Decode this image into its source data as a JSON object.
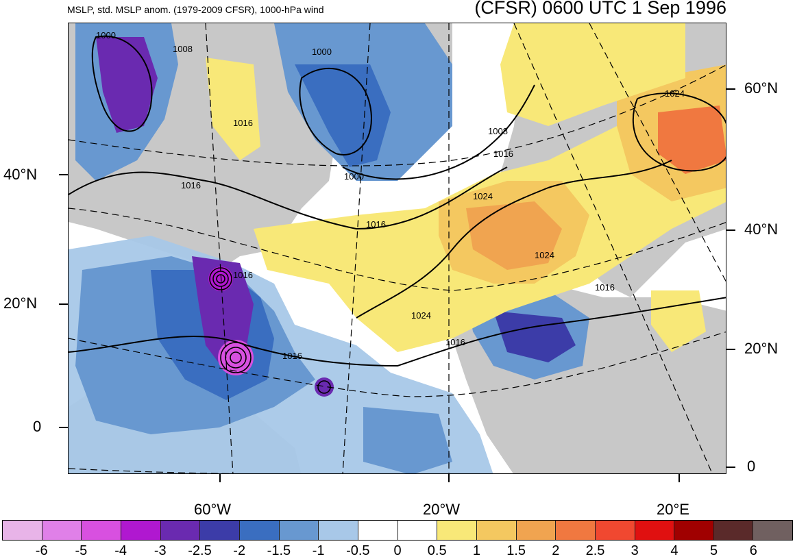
{
  "header": {
    "left_title": "MSLP, std. MSLP anom. (1979-2009 CFSR), 1000-hPa wind",
    "right_title": "(CFSR) 0600 UTC 1 Sep 1996"
  },
  "map": {
    "left_lat_labels": [
      "40°N",
      "20°N",
      "0"
    ],
    "right_lat_labels": [
      "60°N",
      "40°N",
      "20°N",
      "0"
    ],
    "lon_labels": [
      "60°W",
      "20°W",
      "20°E"
    ],
    "contour_labels": [
      "1000",
      "1008",
      "1000",
      "1016",
      "1008",
      "1016",
      "1024",
      "1000",
      "1016",
      "1016",
      "1024",
      "1024",
      "1016",
      "1016",
      "1024",
      "1016",
      "1016"
    ],
    "colors": {
      "land": "#c8c8c8",
      "ocean": "#ffffff"
    }
  },
  "colorbar": {
    "labels": [
      "-6",
      "-5",
      "-4",
      "-3",
      "-2.5",
      "-2",
      "-1.5",
      "-1",
      "-0.5",
      "0",
      "0.5",
      "1",
      "1.5",
      "2",
      "2.5",
      "3",
      "4",
      "5",
      "6"
    ],
    "colors": [
      "#e8b4e8",
      "#e080e8",
      "#d850e0",
      "#b018d0",
      "#6a2ab0",
      "#3c3ca8",
      "#3a6ec0",
      "#6898d0",
      "#a8c8e8",
      "#ffffff",
      "#ffffff",
      "#f8e878",
      "#f4c860",
      "#f0a450",
      "#f07840",
      "#f04830",
      "#e01010",
      "#a00000",
      "#5a2a2a",
      "#706060"
    ]
  }
}
